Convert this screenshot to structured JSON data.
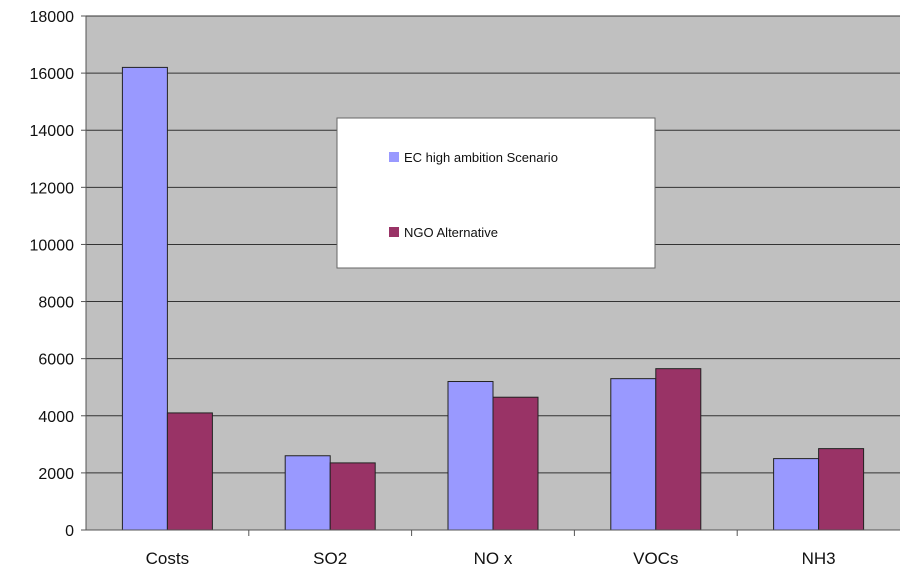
{
  "chart_data": {
    "type": "bar",
    "categories": [
      "Costs",
      "SO2",
      "NO x",
      "VOCs",
      "NH3"
    ],
    "series": [
      {
        "name": "EC high ambition Scenario",
        "values": [
          16200,
          2600,
          5200,
          5300,
          2500
        ],
        "color": "#9999ff"
      },
      {
        "name": "NGO Alternative",
        "values": [
          4100,
          2350,
          4650,
          5650,
          2850
        ],
        "color": "#993366"
      }
    ],
    "ylim": [
      0,
      18000
    ],
    "yticks": [
      0,
      2000,
      4000,
      6000,
      8000,
      10000,
      12000,
      14000,
      16000,
      18000
    ],
    "grid": true,
    "legend_placement": "top-center",
    "plot_background": "#c0c0c0"
  }
}
